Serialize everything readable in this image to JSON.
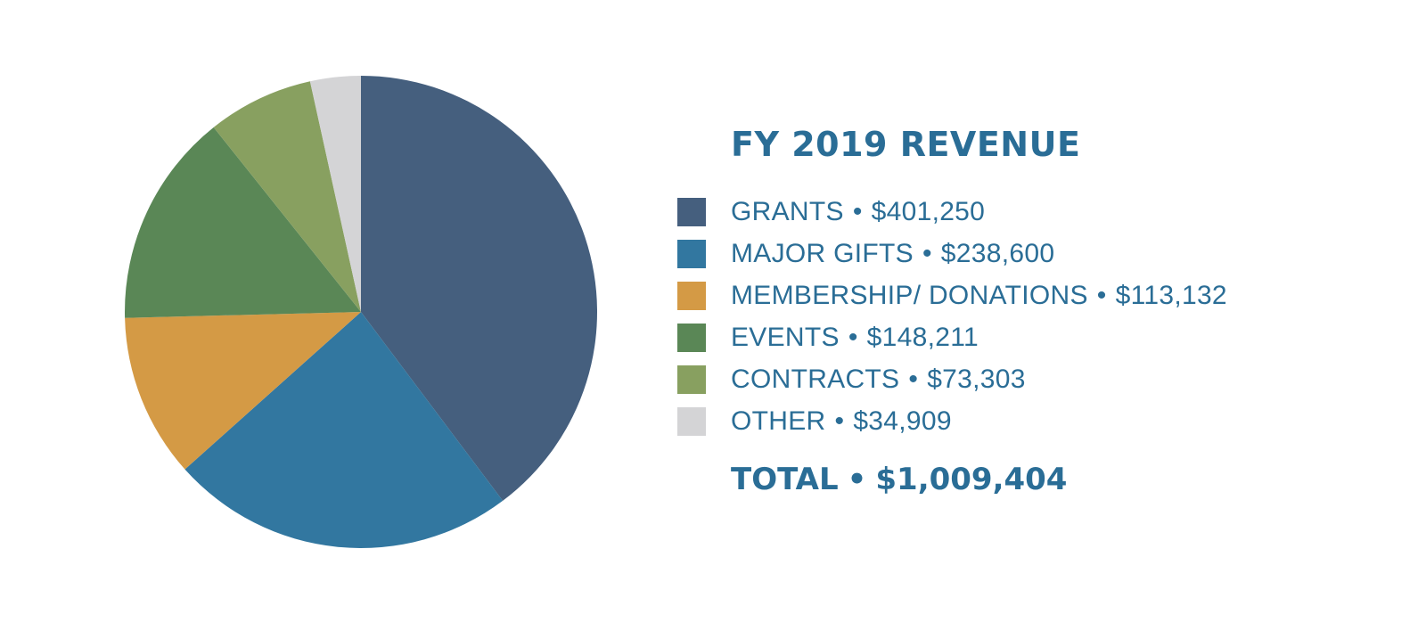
{
  "chart_data": {
    "type": "pie",
    "title": "FY 2019 REVENUE",
    "separator": "•",
    "slices": [
      {
        "label": "GRANTS",
        "value": 401250,
        "value_text": "$401,250",
        "color": "#455f7e"
      },
      {
        "label": "MAJOR GIFTS",
        "value": 238600,
        "value_text": "$238,600",
        "color": "#3277a0"
      },
      {
        "label": "MEMBERSHIP/ DONATIONS",
        "value": 113132,
        "value_text": "$113,132",
        "color": "#d49a45"
      },
      {
        "label": "EVENTS",
        "value": 148211,
        "value_text": "$148,211",
        "color": "#5a8756"
      },
      {
        "label": "CONTRACTS",
        "value": 73303,
        "value_text": "$73,303",
        "color": "#88a060"
      },
      {
        "label": "OTHER",
        "value": 34909,
        "value_text": "$34,909",
        "color": "#d4d4d6"
      }
    ],
    "total_label": "TOTAL",
    "total_text": "$1,009,404",
    "legend_position": "right"
  }
}
